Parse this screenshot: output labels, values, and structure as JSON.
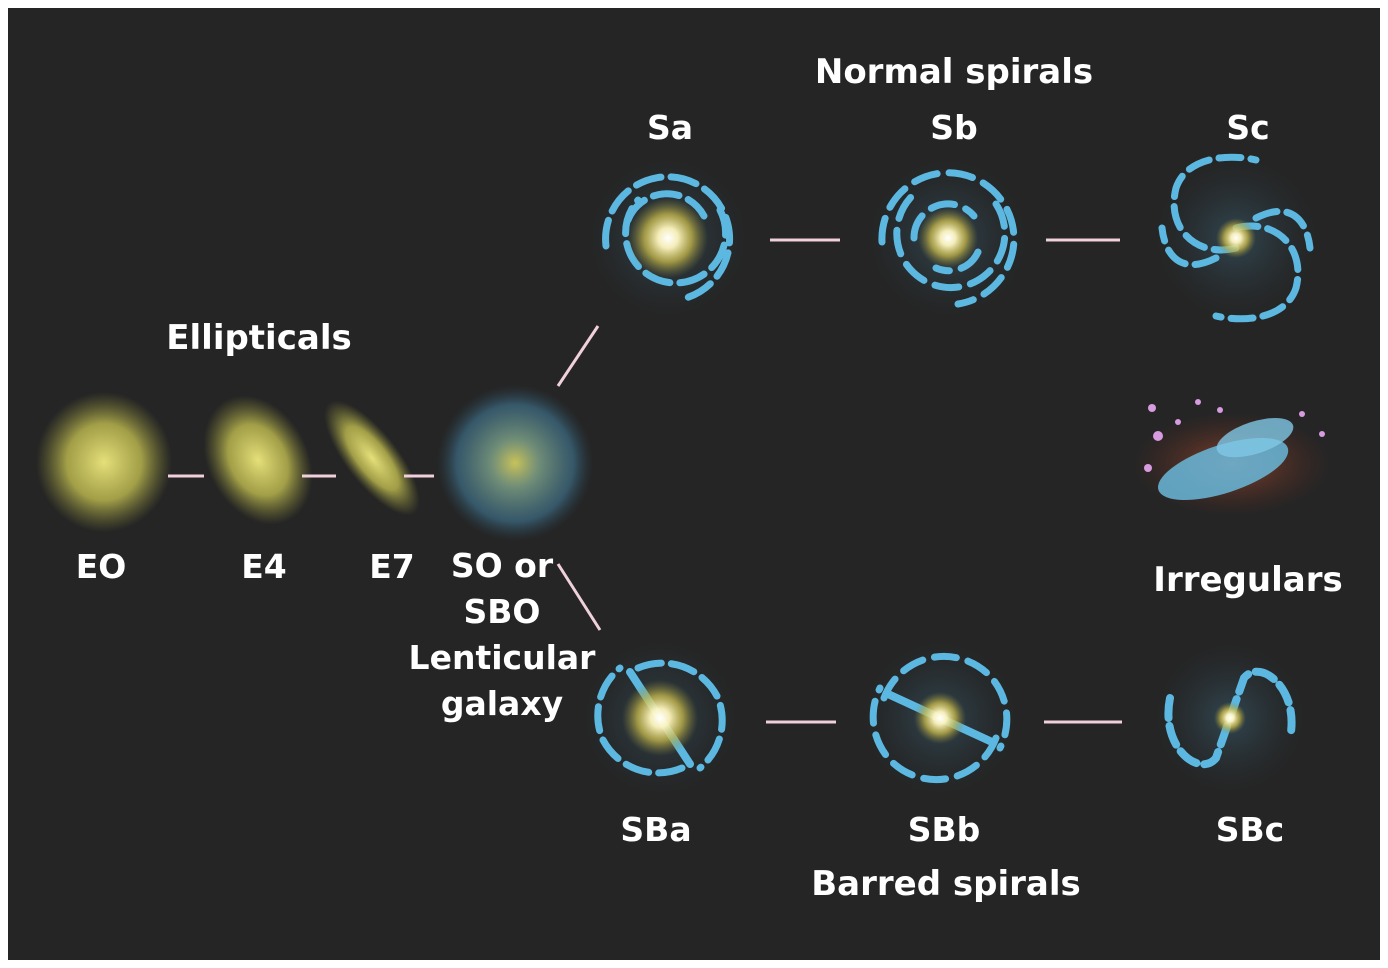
{
  "groups": {
    "normal_spirals": "Normal spirals",
    "ellipticals": "Ellipticals",
    "irregulars": "Irregulars",
    "barred_spirals": "Barred spirals"
  },
  "galaxies": {
    "e0": "EO",
    "e4": "E4",
    "e7": "E7",
    "s0": {
      "line1": "SO or",
      "line2": "SBO",
      "line3": "Lenticular",
      "line4": "galaxy"
    },
    "sa": "Sa",
    "sb": "Sb",
    "sc": "Sc",
    "sba": "SBa",
    "sbb": "SBb",
    "sbc": "SBc"
  },
  "colors": {
    "background": "#252525",
    "elliptical_stars": "#c8c25a",
    "spiral_arms": "#5cb8e0",
    "connector": "#f0d0dc",
    "irregular_red": "#b0553a",
    "irregular_pink": "#d79be0"
  }
}
